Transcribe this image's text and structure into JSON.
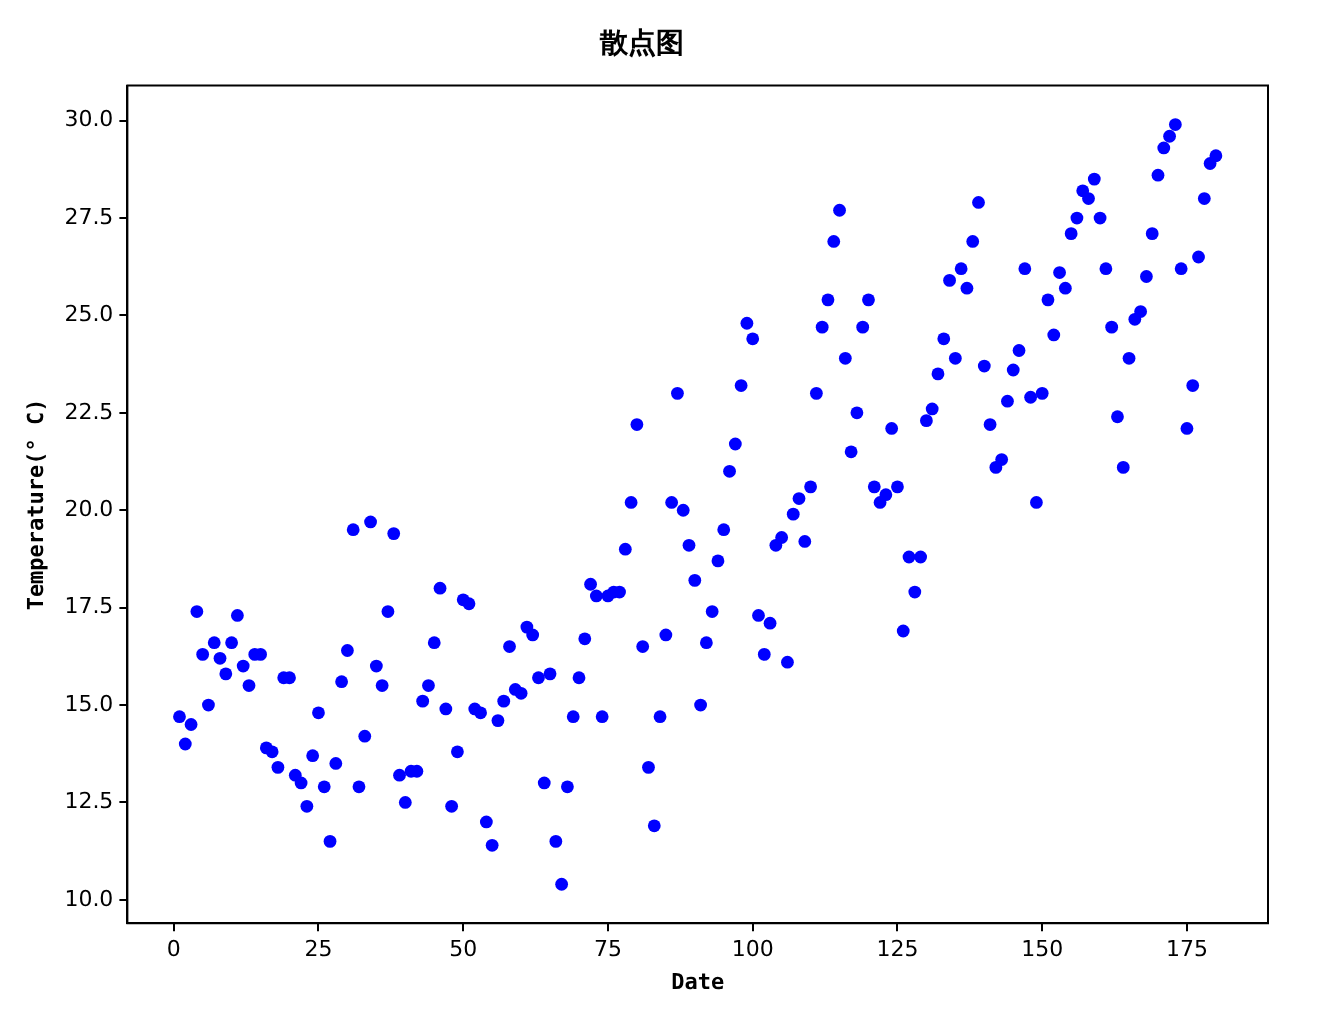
{
  "chart_data": {
    "type": "scatter",
    "title": "散点图",
    "xlabel": "Date",
    "ylabel": "Temperature(° C)",
    "x": [
      1,
      2,
      3,
      4,
      5,
      6,
      7,
      8,
      9,
      10,
      11,
      12,
      13,
      14,
      15,
      16,
      17,
      18,
      19,
      20,
      21,
      22,
      23,
      24,
      25,
      26,
      27,
      28,
      29,
      30,
      31,
      32,
      33,
      34,
      35,
      36,
      37,
      38,
      39,
      40,
      41,
      42,
      43,
      44,
      45,
      46,
      47,
      48,
      49,
      50,
      51,
      52,
      53,
      54,
      55,
      56,
      57,
      58,
      59,
      60,
      61,
      62,
      63,
      64,
      65,
      66,
      67,
      68,
      69,
      70,
      71,
      72,
      73,
      74,
      75,
      76,
      77,
      78,
      79,
      80,
      81,
      82,
      83,
      84,
      85,
      86,
      87,
      88,
      89,
      90,
      91,
      92,
      93,
      94,
      95,
      96,
      97,
      98,
      99,
      100,
      101,
      102,
      103,
      104,
      105,
      106,
      107,
      108,
      109,
      110,
      111,
      112,
      113,
      114,
      115,
      116,
      117,
      118,
      119,
      120,
      121,
      122,
      123,
      124,
      125,
      126,
      127,
      128,
      129,
      130,
      131,
      132,
      133,
      134,
      135,
      136,
      137,
      138,
      139,
      140,
      141,
      142,
      143,
      144,
      145,
      146,
      147,
      148,
      149,
      150,
      151,
      152,
      153,
      154,
      155,
      156,
      157,
      158,
      159,
      160,
      161,
      162,
      163,
      164,
      165,
      166,
      167,
      168,
      169,
      170,
      171,
      172,
      173,
      174,
      175,
      176,
      177,
      178,
      179,
      180
    ],
    "series": [
      {
        "color": "#0000ff",
        "values": [
          14.7,
          14.0,
          14.5,
          17.4,
          16.3,
          15.0,
          16.6,
          16.2,
          15.8,
          16.6,
          17.3,
          16.0,
          15.5,
          16.3,
          16.3,
          13.9,
          13.8,
          13.4,
          15.7,
          15.7,
          13.2,
          13.0,
          12.4,
          13.7,
          14.8,
          12.9,
          11.5,
          13.5,
          15.6,
          16.4,
          19.5,
          12.9,
          14.2,
          19.7,
          16.0,
          15.5,
          17.4,
          19.4,
          13.2,
          12.5,
          13.3,
          13.3,
          15.1,
          15.5,
          16.6,
          18.0,
          14.9,
          12.4,
          13.8,
          17.7,
          17.6,
          14.9,
          14.8,
          12.0,
          11.4,
          14.6,
          15.1,
          16.5,
          15.4,
          15.3,
          17.0,
          16.8,
          15.7,
          13.0,
          15.8,
          11.5,
          10.4,
          12.9,
          14.7,
          15.7,
          16.7,
          18.1,
          17.8,
          14.7,
          17.8,
          17.9,
          17.9,
          19.0,
          20.2,
          22.2,
          16.5,
          13.4,
          11.9,
          14.7,
          16.8,
          20.2,
          23.0,
          20.0,
          19.1,
          18.2,
          15.0,
          16.6,
          17.4,
          18.7,
          19.5,
          21.0,
          21.7,
          23.2,
          24.8,
          24.4,
          17.3,
          16.3,
          17.1,
          19.1,
          19.3,
          16.1,
          19.9,
          20.3,
          19.2,
          20.6,
          23.0,
          24.7,
          25.4,
          26.9,
          27.7,
          23.9,
          21.5,
          22.5,
          24.7,
          25.4,
          20.6,
          20.2,
          20.4,
          22.1,
          20.6,
          16.9,
          18.8,
          17.9,
          18.8,
          22.3,
          22.6,
          23.5,
          24.4,
          25.9,
          23.9,
          26.2,
          25.7,
          26.9,
          27.9,
          23.7,
          22.2,
          21.1,
          21.3,
          22.8,
          23.6,
          24.1,
          26.2,
          22.9,
          20.2,
          23.0,
          25.4,
          24.5,
          26.1,
          25.7,
          27.1,
          27.5,
          28.2,
          28.0,
          28.5,
          27.5,
          26.2,
          24.7,
          22.4,
          21.1,
          23.9,
          24.9,
          25.1,
          26.0,
          27.1,
          28.6,
          29.3,
          29.6,
          29.9,
          26.2,
          22.1,
          23.2,
          26.5,
          28.0,
          28.9,
          29.1
        ]
      }
    ],
    "xlim": [
      -8,
      189
    ],
    "xticks": [
      0,
      25,
      50,
      75,
      100,
      125,
      150,
      175
    ],
    "ylim": [
      9.4,
      30.9
    ],
    "yticks": [
      {
        "value": 10,
        "label": "10.0"
      },
      {
        "value": 12.5,
        "label": "12.5"
      },
      {
        "value": 15,
        "label": "15.0"
      },
      {
        "value": 17.5,
        "label": "17.5"
      },
      {
        "value": 20,
        "label": "20.0"
      },
      {
        "value": 22.5,
        "label": "22.5"
      },
      {
        "value": 25,
        "label": "25.0"
      },
      {
        "value": 27.5,
        "label": "27.5"
      },
      {
        "value": 30,
        "label": "30.0"
      }
    ],
    "marker": "circle",
    "grid": false,
    "legend": false
  }
}
